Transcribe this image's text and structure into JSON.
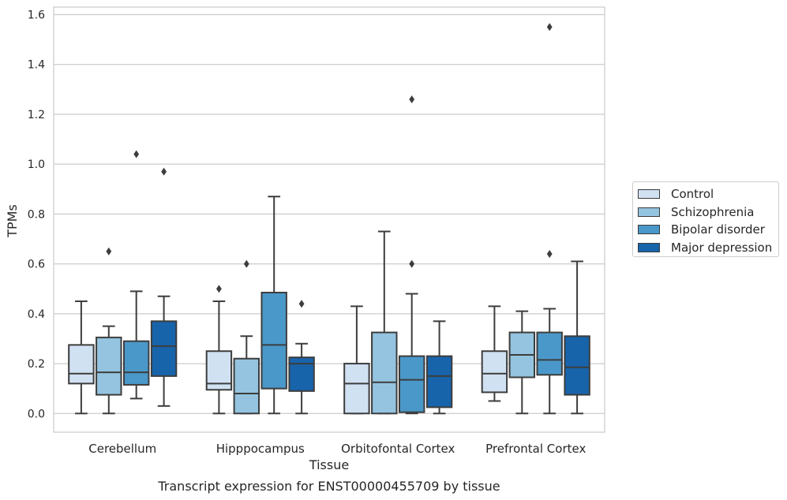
{
  "chart_data": {
    "type": "box",
    "title": "",
    "caption": "Transcript expression for ENST00000455709 by tissue",
    "xlabel": "Tissue",
    "ylabel": "TPMs",
    "ylim": [
      -0.075,
      1.63
    ],
    "yticks": [
      "0.0",
      "0.2",
      "0.4",
      "0.6",
      "0.8",
      "1.0",
      "1.2",
      "1.4",
      "1.6"
    ],
    "grid": "horizontal",
    "legend_position": "outside right",
    "categories": [
      "Cerebellum",
      "Hipppocampus",
      "Orbitofontal Cortex",
      "Prefrontal Cortex"
    ],
    "series": [
      {
        "name": "Control",
        "color": "#d0e1f2",
        "boxes": [
          {
            "whislo": 0.0,
            "q1": 0.12,
            "median": 0.16,
            "q3": 0.275,
            "whishi": 0.45,
            "fliers": []
          },
          {
            "whislo": 0.0,
            "q1": 0.095,
            "median": 0.12,
            "q3": 0.25,
            "whishi": 0.45,
            "fliers": [
              0.5
            ]
          },
          {
            "whislo": 0.0,
            "q1": 0.0,
            "median": 0.12,
            "q3": 0.2,
            "whishi": 0.43,
            "fliers": []
          },
          {
            "whislo": 0.05,
            "q1": 0.085,
            "median": 0.16,
            "q3": 0.25,
            "whishi": 0.43,
            "fliers": []
          }
        ]
      },
      {
        "name": "Schizophrenia",
        "color": "#94c4df",
        "boxes": [
          {
            "whislo": 0.0,
            "q1": 0.075,
            "median": 0.165,
            "q3": 0.305,
            "whishi": 0.35,
            "fliers": [
              0.65
            ]
          },
          {
            "whislo": 0.0,
            "q1": 0.0,
            "median": 0.08,
            "q3": 0.22,
            "whishi": 0.31,
            "fliers": [
              0.6
            ]
          },
          {
            "whislo": 0.0,
            "q1": 0.0,
            "median": 0.125,
            "q3": 0.325,
            "whishi": 0.73,
            "fliers": []
          },
          {
            "whislo": 0.0,
            "q1": 0.145,
            "median": 0.235,
            "q3": 0.325,
            "whishi": 0.41,
            "fliers": []
          }
        ]
      },
      {
        "name": "Bipolar disorder",
        "color": "#4a98c9",
        "boxes": [
          {
            "whislo": 0.06,
            "q1": 0.115,
            "median": 0.165,
            "q3": 0.29,
            "whishi": 0.49,
            "fliers": [
              1.04
            ]
          },
          {
            "whislo": 0.0,
            "q1": 0.1,
            "median": 0.275,
            "q3": 0.485,
            "whishi": 0.87,
            "fliers": []
          },
          {
            "whislo": 0.0,
            "q1": 0.005,
            "median": 0.135,
            "q3": 0.23,
            "whishi": 0.48,
            "fliers": [
              0.6,
              1.26
            ]
          },
          {
            "whislo": 0.0,
            "q1": 0.155,
            "median": 0.215,
            "q3": 0.325,
            "whishi": 0.42,
            "fliers": [
              0.64,
              1.55
            ]
          }
        ]
      },
      {
        "name": "Major depression",
        "color": "#1764ab",
        "boxes": [
          {
            "whislo": 0.03,
            "q1": 0.15,
            "median": 0.27,
            "q3": 0.37,
            "whishi": 0.47,
            "fliers": [
              0.97
            ]
          },
          {
            "whislo": 0.0,
            "q1": 0.09,
            "median": 0.2,
            "q3": 0.225,
            "whishi": 0.28,
            "fliers": [
              0.44
            ]
          },
          {
            "whislo": 0.0,
            "q1": 0.025,
            "median": 0.15,
            "q3": 0.23,
            "whishi": 0.37,
            "fliers": []
          },
          {
            "whislo": 0.0,
            "q1": 0.075,
            "median": 0.185,
            "q3": 0.31,
            "whishi": 0.61,
            "fliers": []
          }
        ]
      }
    ]
  }
}
